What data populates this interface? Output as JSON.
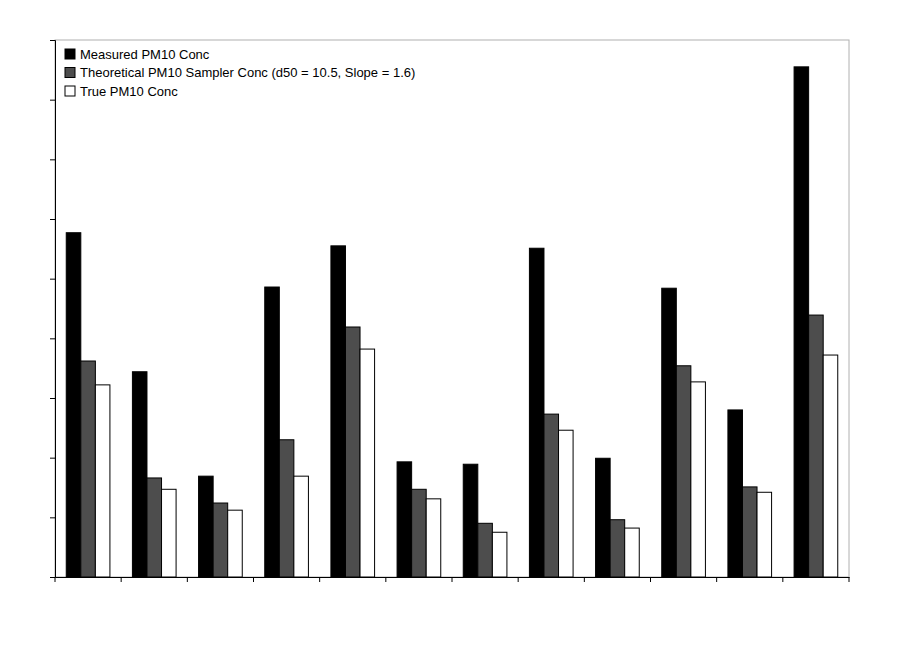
{
  "chart_data": {
    "type": "bar",
    "categories": [
      null,
      null,
      null,
      null,
      null,
      null,
      null,
      null,
      null,
      null,
      null,
      null
    ],
    "series": [
      {
        "name": "Measured PM10 Conc",
        "color": "#000000",
        "values": [
          5.77,
          3.44,
          1.69,
          4.86,
          5.55,
          1.93,
          1.89,
          5.51,
          1.99,
          4.84,
          2.8,
          8.55
        ]
      },
      {
        "name": "Theoretical PM10 Sampler Conc (d50 = 10.5, Slope = 1.6)",
        "color": "#4d4d4d",
        "values": [
          3.62,
          1.66,
          1.24,
          2.3,
          4.19,
          1.47,
          0.9,
          2.73,
          0.96,
          3.54,
          1.51,
          4.39
        ]
      },
      {
        "name": "True PM10 Conc",
        "color": "#ffffff",
        "values": [
          3.22,
          1.47,
          1.12,
          1.69,
          3.82,
          1.31,
          0.75,
          2.46,
          0.82,
          3.27,
          1.42,
          3.72
        ]
      }
    ],
    "ylim": [
      0,
      9
    ],
    "yticks": [
      0,
      1,
      2,
      3,
      4,
      5,
      6,
      7,
      8,
      9
    ],
    "tick_labels": false,
    "grid": false,
    "legend": "top-left"
  }
}
